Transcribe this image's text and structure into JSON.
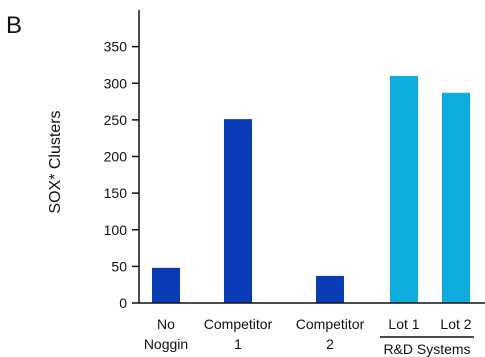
{
  "figure": {
    "panel_letter": "B"
  },
  "colors": {
    "dark_blue": "#0a3bb7",
    "light_blue": "#0eaddf",
    "axis": "#111111"
  },
  "chart_data": {
    "type": "bar",
    "title": "",
    "xlabel": "",
    "ylabel": "SOX* Clusters",
    "ylim": [
      0,
      400
    ],
    "yticks": [
      0,
      50,
      100,
      150,
      200,
      250,
      300,
      350
    ],
    "grid": false,
    "categories": [
      [
        "No",
        "Noggin"
      ],
      [
        "Competitor",
        "1"
      ],
      [
        "Competitor",
        "2"
      ],
      [
        "Lot 1"
      ],
      [
        "Lot 2"
      ]
    ],
    "values": [
      48,
      251,
      37,
      310,
      287
    ],
    "bar_colors": [
      "dark_blue",
      "dark_blue",
      "dark_blue",
      "light_blue",
      "light_blue"
    ],
    "group_annotation": {
      "label": "R&D Systems",
      "spans": [
        "Lot 1",
        "Lot 2"
      ]
    }
  }
}
